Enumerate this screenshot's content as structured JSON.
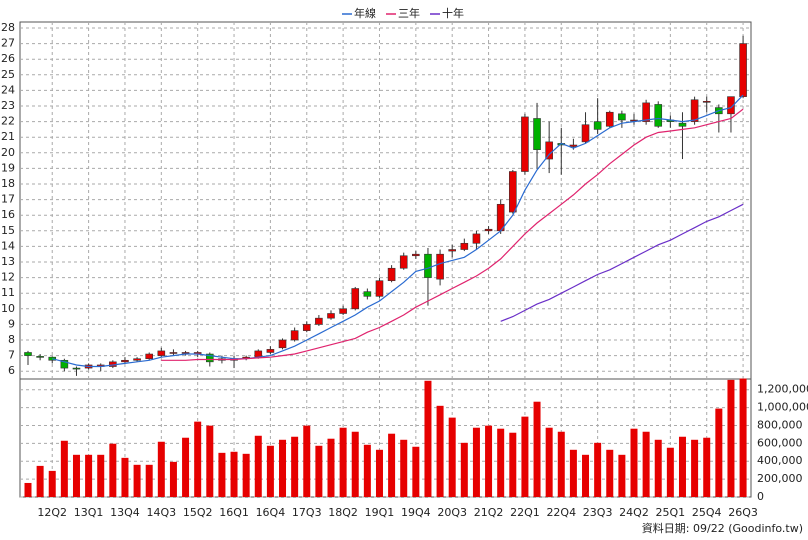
{
  "chart_data": {
    "type": "candlestick",
    "categories": [
      null,
      null,
      "12Q2",
      null,
      null,
      "13Q1",
      null,
      null,
      "13Q4",
      null,
      null,
      "14Q3",
      null,
      null,
      "15Q2",
      null,
      null,
      "16Q1",
      null,
      null,
      "16Q4",
      null,
      null,
      "17Q3",
      null,
      null,
      "18Q2",
      null,
      null,
      "19Q1",
      null,
      null,
      "19Q4",
      null,
      null,
      "20Q3",
      null,
      null,
      "21Q2",
      null,
      null,
      "22Q1",
      null,
      null,
      "22Q4",
      null,
      null,
      "23Q3",
      null,
      null,
      "24Q2",
      null,
      null,
      "25Q1",
      null,
      null,
      "25Q4",
      null,
      null,
      "26Q3"
    ],
    "open": [
      7.2,
      6.95,
      6.9,
      6.7,
      6.2,
      6.2,
      6.3,
      6.3,
      6.6,
      6.7,
      6.8,
      7.0,
      7.2,
      7.2,
      7.1,
      7.1,
      6.7,
      6.8,
      6.8,
      6.9,
      7.2,
      7.5,
      8.0,
      8.6,
      9.0,
      9.4,
      9.7,
      10.0,
      11.1,
      10.8,
      11.8,
      12.6,
      13.4,
      13.5,
      11.9,
      13.7,
      13.8,
      14.2,
      15.0,
      15.0,
      16.2,
      18.8,
      22.2,
      19.6,
      20.6,
      20.4,
      20.7,
      22.0,
      21.7,
      22.5,
      22.1,
      22.0,
      23.1,
      22.1,
      21.9,
      22.0,
      23.3,
      22.9,
      22.5,
      23.6
    ],
    "high": [
      7.3,
      7.1,
      6.95,
      6.8,
      6.3,
      6.5,
      6.5,
      6.7,
      6.9,
      6.9,
      7.2,
      7.5,
      7.4,
      7.3,
      7.3,
      7.2,
      7.0,
      7.0,
      7.0,
      7.4,
      7.6,
      8.1,
      8.8,
      9.2,
      9.6,
      9.9,
      10.2,
      11.4,
      11.3,
      12.0,
      12.8,
      13.6,
      13.7,
      13.9,
      13.8,
      14.1,
      14.5,
      15.0,
      15.3,
      17.0,
      18.9,
      22.5,
      23.2,
      22.0,
      21.6,
      20.9,
      22.6,
      23.5,
      22.7,
      22.7,
      22.5,
      23.4,
      23.3,
      22.4,
      22.6,
      23.6,
      23.6,
      23.1,
      23.6,
      27.5
    ],
    "low": [
      6.4,
      6.7,
      6.5,
      6.0,
      5.7,
      6.1,
      6.0,
      6.2,
      6.5,
      6.6,
      6.7,
      6.9,
      7.0,
      7.0,
      6.9,
      6.3,
      6.5,
      6.2,
      6.7,
      6.8,
      7.1,
      7.4,
      7.9,
      8.5,
      8.9,
      9.3,
      9.6,
      9.9,
      10.6,
      10.7,
      11.7,
      12.5,
      13.2,
      10.2,
      11.5,
      13.3,
      13.7,
      13.8,
      14.8,
      14.8,
      16.1,
      18.6,
      19.0,
      18.7,
      18.6,
      20.2,
      20.6,
      21.2,
      21.6,
      21.6,
      21.8,
      21.8,
      21.6,
      21.6,
      19.6,
      21.8,
      22.6,
      21.3,
      21.3,
      23.5
    ],
    "close": [
      7.0,
      6.9,
      6.7,
      6.2,
      6.15,
      6.4,
      6.4,
      6.6,
      6.7,
      6.8,
      7.1,
      7.3,
      7.2,
      7.2,
      7.2,
      6.6,
      6.8,
      6.7,
      6.9,
      7.3,
      7.4,
      8.0,
      8.6,
      9.0,
      9.4,
      9.7,
      10.0,
      11.3,
      10.8,
      11.8,
      12.6,
      13.4,
      13.5,
      12.0,
      13.5,
      13.8,
      14.2,
      14.8,
      15.1,
      16.7,
      18.8,
      22.3,
      20.2,
      20.7,
      20.5,
      20.5,
      21.8,
      21.5,
      22.6,
      22.1,
      22.1,
      23.2,
      21.7,
      22.0,
      21.7,
      23.4,
      23.3,
      22.5,
      23.6,
      27.0
    ],
    "up_color": "#e60000",
    "down_color": "#00b000",
    "series": [
      {
        "name": "年線",
        "color": "#2a6bd1",
        "values": [
          null,
          null,
          6.8,
          6.6,
          6.4,
          6.3,
          6.3,
          6.4,
          6.5,
          6.6,
          6.7,
          6.9,
          7.0,
          7.1,
          7.1,
          7.0,
          6.9,
          6.8,
          6.8,
          6.9,
          7.0,
          7.3,
          7.6,
          8.0,
          8.4,
          8.8,
          9.2,
          9.6,
          10.1,
          10.5,
          11.1,
          11.7,
          12.4,
          12.6,
          12.9,
          13.1,
          13.3,
          13.8,
          14.4,
          15.0,
          16.0,
          17.6,
          18.9,
          19.9,
          20.6,
          20.3,
          20.6,
          21.1,
          21.6,
          21.9,
          22.0,
          22.1,
          22.2,
          22.1,
          22.0,
          22.1,
          22.4,
          22.7,
          22.9,
          23.7
        ]
      },
      {
        "name": "三年",
        "color": "#e0246e",
        "values": [
          null,
          null,
          null,
          null,
          null,
          null,
          null,
          null,
          null,
          null,
          null,
          6.7,
          6.7,
          6.7,
          6.75,
          6.75,
          6.75,
          6.75,
          6.8,
          6.85,
          6.9,
          7.0,
          7.1,
          7.3,
          7.5,
          7.7,
          7.9,
          8.1,
          8.5,
          8.8,
          9.2,
          9.6,
          10.1,
          10.5,
          10.9,
          11.3,
          11.7,
          12.1,
          12.6,
          13.2,
          14.0,
          14.8,
          15.5,
          16.1,
          16.7,
          17.3,
          18.0,
          18.6,
          19.3,
          19.9,
          20.5,
          21.0,
          21.3,
          21.4,
          21.5,
          21.6,
          21.8,
          22.0,
          22.2,
          22.8
        ]
      },
      {
        "name": "十年",
        "color": "#6a2fc8",
        "values": [
          null,
          null,
          null,
          null,
          null,
          null,
          null,
          null,
          null,
          null,
          null,
          null,
          null,
          null,
          null,
          null,
          null,
          null,
          null,
          null,
          null,
          null,
          null,
          null,
          null,
          null,
          null,
          null,
          null,
          null,
          null,
          null,
          null,
          null,
          null,
          null,
          null,
          null,
          null,
          9.2,
          9.5,
          9.9,
          10.3,
          10.6,
          11.0,
          11.4,
          11.8,
          12.2,
          12.5,
          12.9,
          13.3,
          13.7,
          14.1,
          14.4,
          14.8,
          15.2,
          15.6,
          15.9,
          16.3,
          16.7
        ]
      }
    ],
    "ylim": [
      5.5,
      28
    ],
    "yticks": [
      6,
      7,
      8,
      9,
      10,
      11,
      12,
      13,
      14,
      15,
      16,
      17,
      18,
      19,
      20,
      21,
      22,
      23,
      24,
      25,
      26,
      27,
      28
    ],
    "grid": true,
    "volume": {
      "color": "#e60000",
      "values": [
        157000,
        348000,
        292000,
        629000,
        472000,
        472000,
        472000,
        596000,
        438000,
        360000,
        360000,
        618000,
        393000,
        663000,
        843000,
        798000,
        494000,
        506000,
        483000,
        685000,
        573000,
        640000,
        674000,
        798000,
        573000,
        652000,
        775000,
        730000,
        584000,
        528000,
        708000,
        640000,
        562000,
        1300000,
        1020000,
        888000,
        606000,
        775000,
        798000,
        764000,
        719000,
        899000,
        1066000,
        775000,
        730000,
        528000,
        472000,
        606000,
        528000,
        472000,
        764000,
        730000,
        640000,
        551000,
        674000,
        640000,
        663000,
        989000,
        1310000,
        1325000
      ],
      "ylim": [
        0,
        1320000
      ],
      "yticks": [
        0,
        {
          "value": 200000,
          "label": "200,000"
        },
        {
          "value": 400000,
          "label": "400,000"
        },
        {
          "value": 600000,
          "label": "600,000"
        },
        {
          "value": 800000,
          "label": "800,000"
        },
        {
          "value": 1000000,
          "label": "1,000,000"
        },
        {
          "value": 1200000,
          "label": "1,200,000"
        }
      ]
    },
    "source_note": "資料日期: 09/22  (Goodinfo.tw)"
  }
}
